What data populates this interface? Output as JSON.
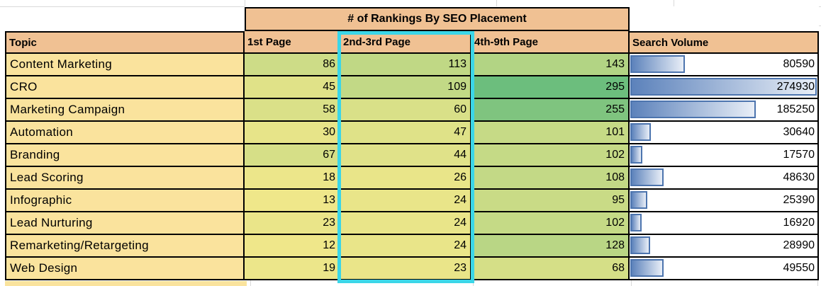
{
  "table": {
    "title": "# of Rankings By SEO Placement",
    "columns": {
      "topic": "Topic",
      "first": "1st Page",
      "second": "2nd-3rd Page",
      "third": "4th-9th Page",
      "volume": "Search Volume"
    },
    "rows": [
      {
        "topic": "Content Marketing",
        "first": 86,
        "second": 113,
        "third": 143,
        "volume": 80590
      },
      {
        "topic": "CRO",
        "first": 45,
        "second": 109,
        "third": 295,
        "volume": 274930
      },
      {
        "topic": "Marketing Campaign",
        "first": 58,
        "second": 60,
        "third": 255,
        "volume": 185250
      },
      {
        "topic": "Automation",
        "first": 30,
        "second": 47,
        "third": 101,
        "volume": 30640
      },
      {
        "topic": "Branding",
        "first": 67,
        "second": 44,
        "third": 102,
        "volume": 17570
      },
      {
        "topic": "Lead Scoring",
        "first": 18,
        "second": 26,
        "third": 108,
        "volume": 48630
      },
      {
        "topic": "Infographic",
        "first": 13,
        "second": 24,
        "third": 95,
        "volume": 25390
      },
      {
        "topic": "Lead Nurturing",
        "first": 23,
        "second": 24,
        "third": 102,
        "volume": 16920
      },
      {
        "topic": "Remarketing/Retargeting",
        "first": 12,
        "second": 24,
        "third": 128,
        "volume": 28990
      },
      {
        "topic": "Web Design",
        "first": 19,
        "second": 23,
        "third": 68,
        "volume": 49550
      }
    ],
    "selection": {
      "column": "2nd-3rd Page"
    }
  },
  "colors": {
    "header_fill": "#F0C193",
    "topic_fill": "#FAE39D",
    "scale_min_color": "#EFE78A",
    "scale_max_color": "#6CBE7D",
    "bar_border": "#4C74AE",
    "bar_fill_start": "#5C82BB",
    "bar_fill_end": "#E8EEF7",
    "selection_border": "#3BD6E8",
    "gridline": "#D9D9D9",
    "cell_border": "#000000"
  }
}
